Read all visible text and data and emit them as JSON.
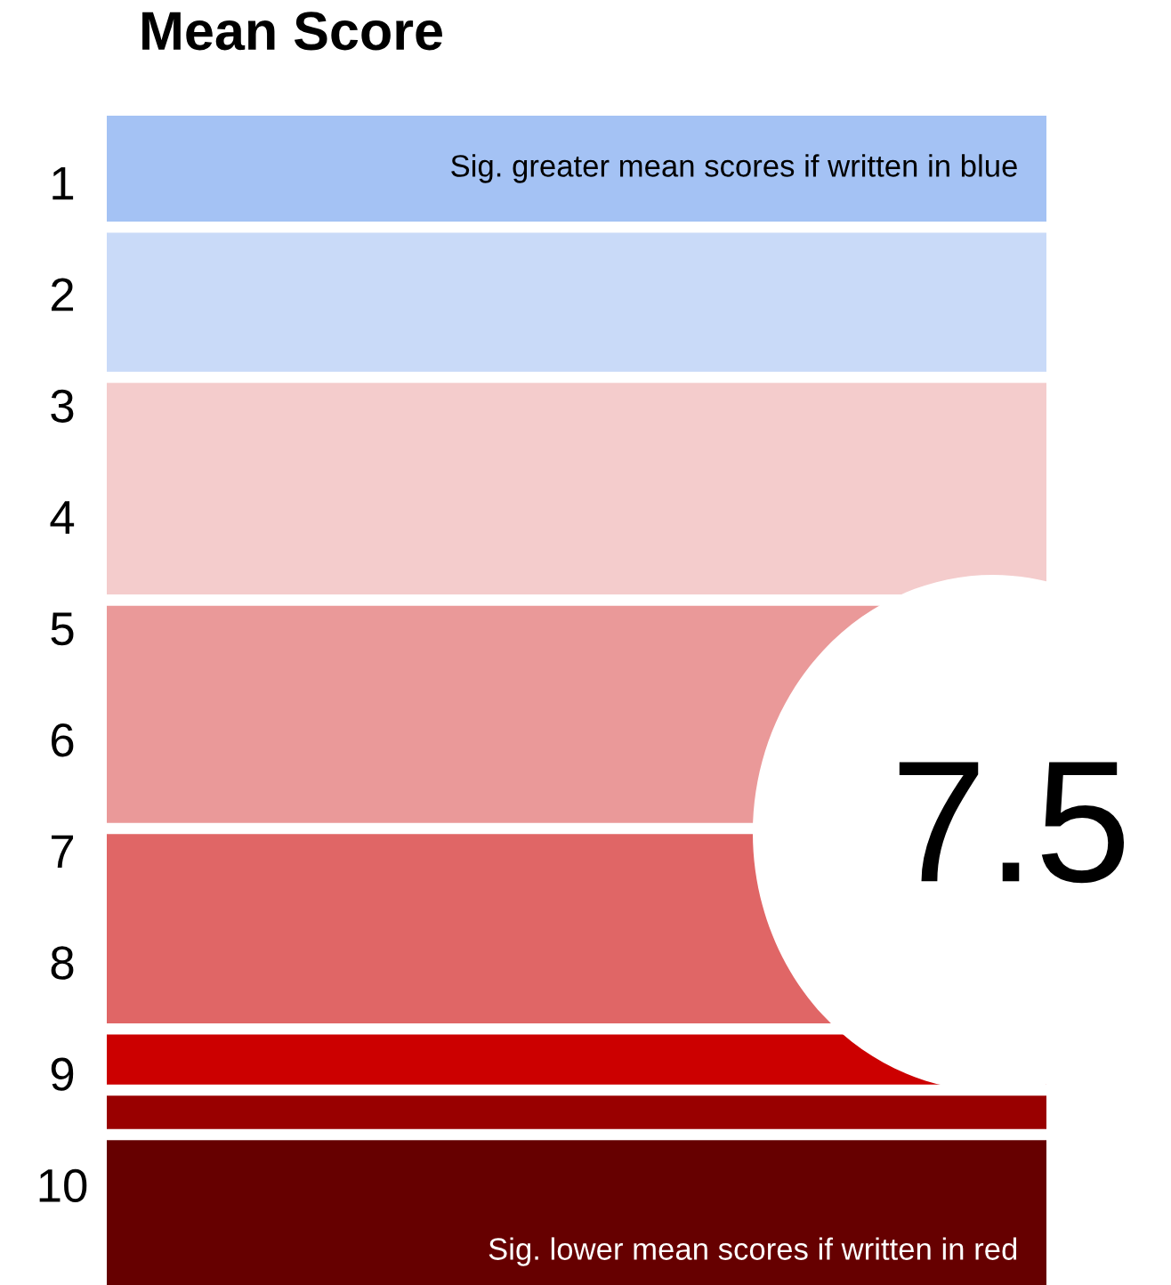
{
  "chart_data": {
    "type": "bar",
    "title": "Mean Score",
    "categories": [
      null
    ],
    "ylim": [
      10.9,
      0.4
    ],
    "yticks": [
      1,
      2,
      3,
      4,
      5,
      6,
      7,
      8,
      9,
      10
    ],
    "series": [
      {
        "color": "#a4c2f4",
        "base": [
          0.4
        ],
        "values": [
          0.95
        ]
      },
      {
        "color": "#c9daf8",
        "base": [
          1.45
        ],
        "values": [
          1.25
        ]
      },
      {
        "color": "#f4cccc",
        "base": [
          2.8
        ],
        "values": [
          1.9
        ]
      },
      {
        "color": "#ea9999",
        "base": [
          4.8
        ],
        "values": [
          1.95
        ]
      },
      {
        "color": "#e06666",
        "base": [
          6.85
        ],
        "values": [
          1.7
        ]
      },
      {
        "color": "#cc0000",
        "base": [
          8.65
        ],
        "values": [
          0.45
        ]
      },
      {
        "color": "#990000",
        "base": [
          9.2
        ],
        "values": [
          0.3
        ]
      },
      {
        "color": "#660000",
        "base": [
          9.6
        ],
        "values": [
          1.3
        ]
      }
    ],
    "tick_labels": "y",
    "annotations": [
      "Sig. greater mean scores if written in blue",
      "Sig. lower mean scores if written in red",
      "7.5"
    ]
  }
}
